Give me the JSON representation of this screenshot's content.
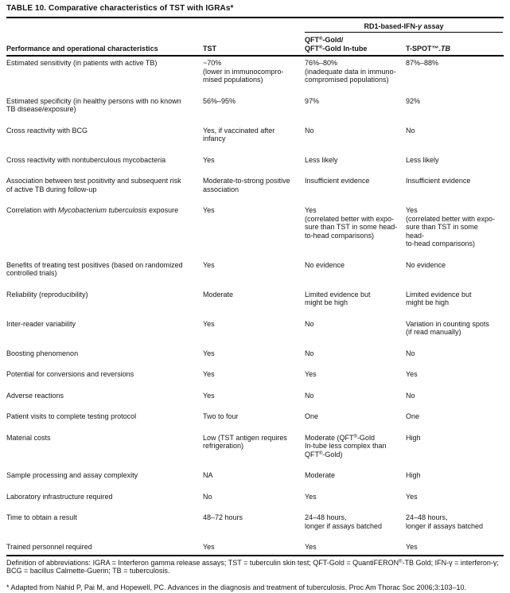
{
  "title": "TABLE 10. Comparative characteristics of TST with IGRAs*",
  "header": {
    "span_prefix": "RD1-based-IFN-",
    "span_gamma": "γ",
    "span_suffix": " assay",
    "col1": "Performance and operational characteristics",
    "col2": "TST",
    "col3": "QFT®-Gold/\nQFT®-Gold In-tube",
    "col4_prefix": "T-SPOT™.",
    "col4_italic": "TB"
  },
  "rows": [
    {
      "label": "Estimated sensitivity (in patients with active TB)",
      "tst": "~70%\n(lower in immunocompro-\nmised populations)",
      "qft": "76%–80%\n(inadequate data in immuno-\ncompromised populations)",
      "tspot": "87%–88%"
    },
    {
      "label": "Estimated specificity (in healthy persons with no known\nTB disease/exposure)",
      "tst": "56%–95%",
      "qft": "97%",
      "tspot": "92%"
    },
    {
      "label": "Cross reactivity with BCG",
      "tst": "Yes, if vaccinated after\ninfancy",
      "qft": "No",
      "tspot": "No"
    },
    {
      "label": "Cross reactivity with nontuberculous mycobacteria",
      "tst": "Yes",
      "qft": "Less likely",
      "tspot": "Less likely"
    },
    {
      "label": "Association between test positivity and subsequent risk\nof active TB during follow-up",
      "tst": "Moderate-to-strong positive\nassociation",
      "qft": "Insufficient evidence",
      "tspot": "Insufficient evidence"
    },
    {
      "label_parts": [
        {
          "t": "Correlation with "
        },
        {
          "t": "Mycobacterium tuberculosis",
          "i": true
        },
        {
          "t": " exposure"
        }
      ],
      "tst": "Yes",
      "qft": "Yes\n(correlated better with expo-\nsure than TST in some head-\nto-head comparisons)",
      "tspot": "Yes\n(correlated better with expo-\nsure than TST in some head-\nto-head comparisons)"
    },
    {
      "label": "Benefits of treating test positives (based on randomized\ncontrolled trials)",
      "tst": "Yes",
      "qft": "No evidence",
      "tspot": "No evidence"
    },
    {
      "label": "Reliability (reproducibility)",
      "tst": "Moderate",
      "qft": "Limited evidence but\nmight be high",
      "tspot": "Limited evidence but\nmight be high"
    },
    {
      "label": "Inter-reader variability",
      "tst": "Yes",
      "qft": "No",
      "tspot": "Variation in counting spots\n(if read manually)"
    },
    {
      "label": "Boosting phenomenon",
      "tst": "Yes",
      "qft": "No",
      "tspot": "No"
    },
    {
      "label": "Potential for conversions and reversions",
      "tst": "Yes",
      "qft": "Yes",
      "tspot": "Yes"
    },
    {
      "label": "Adverse reactions",
      "tst": "Yes",
      "qft": "No",
      "tspot": "No"
    },
    {
      "label": "Patient visits to complete testing protocol",
      "tst": "Two to four",
      "qft": "One",
      "tspot": "One"
    },
    {
      "label": "Material costs",
      "tst": "Low (TST antigen requires\nrefrigeration)",
      "qft": "Moderate (QFT®-Gold\nIn-tube less complex than\nQFT®-Gold)",
      "tspot": "High"
    },
    {
      "label": "Sample processing and assay complexity",
      "tst": "NA",
      "qft": "Moderate",
      "tspot": "High"
    },
    {
      "label": "Laboratory infrastructure required",
      "tst": "No",
      "qft": "Yes",
      "tspot": "Yes"
    },
    {
      "label": "Time to obtain a result",
      "tst": "48–72 hours",
      "qft": "24–48 hours,\nlonger if assays batched",
      "tspot": "24–48 hours,\nlonger if assays batched"
    },
    {
      "label": "Trained personnel required",
      "tst": "Yes",
      "qft": "Yes",
      "tspot": "Yes"
    }
  ],
  "footnotes": {
    "definitions": "Definition of abbreviations: IGRA = Interferon gamma release assays; TST = tuberculin skin test; QFT-Gold = QuantiFERON®-TB Gold; IFN-γ = interferon-γ;\nBCG = bacillus Calmette-Guerin; TB = tuberculosis.",
    "adapted": "* Adapted from Nahid P, Pai M, and Hopewell, PC. Advances in the diagnosis and treatment of tuberculosis. Proc Am Thorac Soc 2006;3:103–10."
  },
  "colors": {
    "text": "#151515",
    "rule": "#000000",
    "background": "#ffffff"
  }
}
